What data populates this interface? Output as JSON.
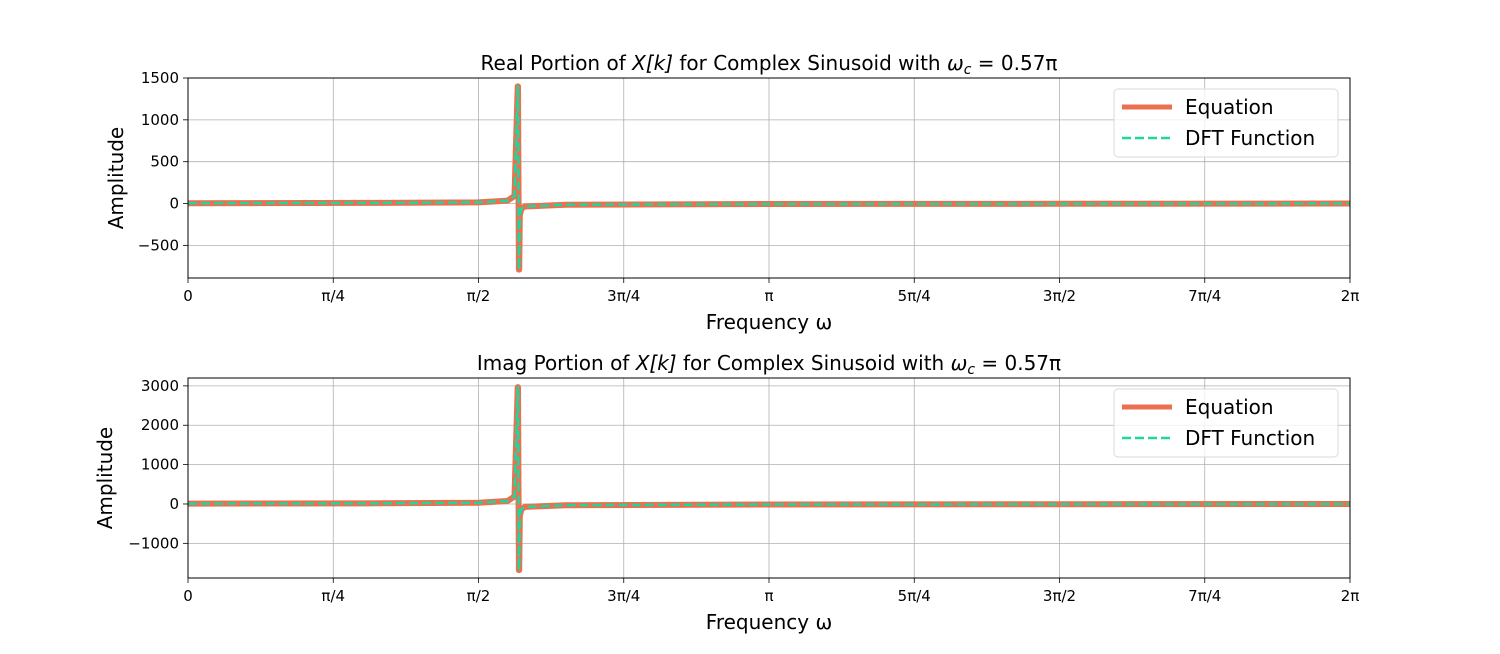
{
  "chart_data": [
    {
      "type": "line",
      "title": {
        "prefix": "Real Portion of ",
        "math": "X[k]",
        "middle": " for Complex Sinusoid with ",
        "omega": "ω",
        "sub": "c",
        "eq": " = 0.57π"
      },
      "xlabel": "Frequency ω",
      "ylabel": "Amplitude",
      "x_unit": "π",
      "xlim": [
        0,
        2
      ],
      "ylim": [
        -890,
        1500
      ],
      "xticks": [
        0,
        0.25,
        0.5,
        0.75,
        1,
        1.25,
        1.5,
        1.75,
        2
      ],
      "xtick_labels": [
        "0",
        "π/4",
        "π/2",
        "3π/4",
        "π",
        "5π/4",
        "3π/2",
        "7π/4",
        "2π"
      ],
      "yticks": [
        -500,
        0,
        500,
        1000,
        1500
      ],
      "ytick_labels": [
        "−500",
        "0",
        "500",
        "1000",
        "1500"
      ],
      "grid": true,
      "legend_position": "top-right",
      "series": [
        {
          "name": "Equation",
          "color": "#EB704E",
          "style": "solid",
          "x": [
            0,
            0.3,
            0.5,
            0.55,
            0.562,
            0.5675,
            0.568,
            0.5695,
            0.57,
            0.571,
            0.574,
            0.58,
            0.65,
            1,
            1.5,
            2
          ],
          "y": [
            4,
            7,
            14,
            35,
            90,
            1400,
            1400,
            -790,
            -790,
            -140,
            -60,
            -35,
            -14,
            -6,
            -3,
            0
          ]
        },
        {
          "name": "DFT Function",
          "color": "#1ED6A0",
          "style": "dashed",
          "x": [
            0,
            0.3,
            0.5,
            0.55,
            0.562,
            0.5675,
            0.568,
            0.5695,
            0.57,
            0.571,
            0.574,
            0.58,
            0.65,
            1,
            1.5,
            2
          ],
          "y": [
            4,
            7,
            14,
            35,
            90,
            1400,
            1400,
            -790,
            -790,
            -140,
            -60,
            -35,
            -14,
            -6,
            -3,
            0
          ]
        }
      ]
    },
    {
      "type": "line",
      "title": {
        "prefix": "Imag Portion of ",
        "math": "X[k]",
        "middle": " for Complex Sinusoid with ",
        "omega": "ω",
        "sub": "c",
        "eq": " = 0.57π"
      },
      "xlabel": "Frequency ω",
      "ylabel": "Amplitude",
      "x_unit": "π",
      "xlim": [
        0,
        2
      ],
      "ylim": [
        -1880,
        3200
      ],
      "xticks": [
        0,
        0.25,
        0.5,
        0.75,
        1,
        1.25,
        1.5,
        1.75,
        2
      ],
      "xtick_labels": [
        "0",
        "π/4",
        "π/2",
        "3π/4",
        "π",
        "5π/4",
        "3π/2",
        "7π/4",
        "2π"
      ],
      "yticks": [
        -1000,
        0,
        1000,
        2000,
        3000
      ],
      "ytick_labels": [
        "−1000",
        "0",
        "1000",
        "2000",
        "3000"
      ],
      "grid": true,
      "legend_position": "top-right",
      "series": [
        {
          "name": "Equation",
          "color": "#EB704E",
          "style": "solid",
          "x": [
            0,
            0.3,
            0.5,
            0.55,
            0.562,
            0.5675,
            0.568,
            0.5695,
            0.57,
            0.571,
            0.574,
            0.58,
            0.65,
            1,
            1.5,
            2
          ],
          "y": [
            9,
            15,
            30,
            75,
            190,
            2970,
            2970,
            -1680,
            -1680,
            -300,
            -130,
            -75,
            -30,
            -12,
            -5,
            0
          ]
        },
        {
          "name": "DFT Function",
          "color": "#1ED6A0",
          "style": "dashed",
          "x": [
            0,
            0.3,
            0.5,
            0.55,
            0.562,
            0.5675,
            0.568,
            0.5695,
            0.57,
            0.571,
            0.574,
            0.58,
            0.65,
            1,
            1.5,
            2
          ],
          "y": [
            9,
            15,
            30,
            75,
            190,
            2970,
            2970,
            -1680,
            -1680,
            -300,
            -130,
            -75,
            -30,
            -12,
            -5,
            0
          ]
        }
      ]
    }
  ]
}
